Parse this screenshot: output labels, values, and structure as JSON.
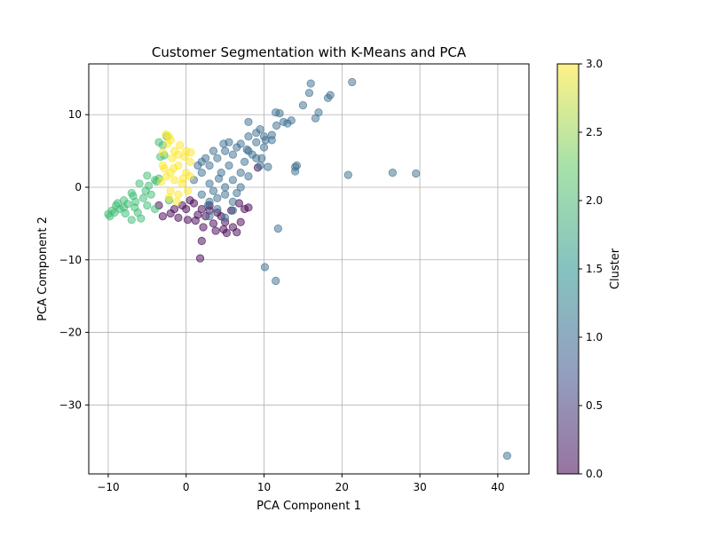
{
  "chart_data": {
    "type": "scatter",
    "title": "Customer Segmentation with K-Means and PCA",
    "xlabel": "PCA Component 1",
    "ylabel": "PCA Component 2",
    "xlim": [
      -12.5,
      44
    ],
    "ylim": [
      -39.5,
      17
    ],
    "xticks": [
      -10,
      0,
      10,
      20,
      30,
      40
    ],
    "yticks": [
      -30,
      -20,
      -10,
      0,
      10
    ],
    "xtick_labels": [
      "−10",
      "0",
      "10",
      "20",
      "30",
      "40"
    ],
    "ytick_labels": [
      "−30",
      "−20",
      "−10",
      "0",
      "10"
    ],
    "grid": true,
    "point_alpha": 0.5,
    "colorbar": {
      "label": "Cluster",
      "range": [
        0,
        3
      ],
      "ticks": [
        0.0,
        0.5,
        1.0,
        1.5,
        2.0,
        2.5,
        3.0
      ],
      "tick_labels": [
        "0.0",
        "0.5",
        "1.0",
        "1.5",
        "2.0",
        "2.5",
        "3.0"
      ],
      "colormap": "viridis",
      "stops": [
        "#440154",
        "#3b528b",
        "#21918c",
        "#5ec962",
        "#fde725"
      ]
    },
    "series": [
      {
        "cluster": 0,
        "color": "#440154",
        "points": [
          [
            1,
            -2.2
          ],
          [
            2,
            -3
          ],
          [
            3,
            -2.5
          ],
          [
            4,
            -3.5
          ],
          [
            5,
            -4.8
          ],
          [
            6,
            -5.5
          ],
          [
            2.5,
            -4
          ],
          [
            1.5,
            -3.8
          ],
          [
            3.5,
            -5
          ],
          [
            4.5,
            -4
          ],
          [
            -0.5,
            -2.5
          ],
          [
            -1,
            -4.2
          ],
          [
            -2,
            -3.6
          ],
          [
            -3,
            -4
          ],
          [
            -1.5,
            -3
          ],
          [
            0.5,
            -1.8
          ],
          [
            2.2,
            -5.5
          ],
          [
            3.8,
            -6
          ],
          [
            5.2,
            -6.3
          ],
          [
            6.5,
            -6.2
          ],
          [
            7.5,
            -3
          ],
          [
            8,
            -2.8
          ],
          [
            7,
            -4.8
          ],
          [
            2,
            -7.4
          ],
          [
            1.8,
            -9.8
          ],
          [
            9.2,
            2.7
          ],
          [
            -3.5,
            -2.5
          ],
          [
            0.2,
            -4.5
          ],
          [
            1.2,
            -4.6
          ],
          [
            4.8,
            -5.8
          ],
          [
            5.8,
            -3.2
          ],
          [
            6.8,
            -2.2
          ],
          [
            3,
            -3.2
          ],
          [
            0,
            -3
          ]
        ]
      },
      {
        "cluster": 1,
        "color": "#3b6e8f",
        "points": [
          [
            1,
            1
          ],
          [
            2,
            2
          ],
          [
            3,
            3
          ],
          [
            4,
            4
          ],
          [
            5,
            5
          ],
          [
            6,
            4.5
          ],
          [
            7,
            6
          ],
          [
            8,
            7
          ],
          [
            9,
            7.5
          ],
          [
            10,
            7
          ],
          [
            8,
            5
          ],
          [
            9,
            4
          ],
          [
            10,
            5.5
          ],
          [
            11,
            6.5
          ],
          [
            2,
            -1
          ],
          [
            3,
            -2
          ],
          [
            4,
            -1.5
          ],
          [
            5,
            0
          ],
          [
            6,
            1
          ],
          [
            7,
            2
          ],
          [
            5,
            -1
          ],
          [
            4,
            -3
          ],
          [
            3,
            -4
          ],
          [
            6,
            -2
          ],
          [
            2.5,
            4
          ],
          [
            3.5,
            5
          ],
          [
            6.5,
            5.5
          ],
          [
            1.5,
            3
          ],
          [
            7.5,
            3.5
          ],
          [
            8.5,
            4.5
          ],
          [
            10.5,
            2.8
          ],
          [
            9.5,
            3
          ],
          [
            9.5,
            8
          ],
          [
            8,
            9
          ],
          [
            11.5,
            10.3
          ],
          [
            12,
            10.2
          ],
          [
            12.5,
            9
          ],
          [
            13,
            8.8
          ],
          [
            13.5,
            9.2
          ],
          [
            11.6,
            8.5
          ],
          [
            9.7,
            4
          ],
          [
            15,
            11.3
          ],
          [
            15.8,
            13
          ],
          [
            16,
            14.3
          ],
          [
            16.6,
            9.5
          ],
          [
            17,
            10.3
          ],
          [
            18.2,
            12.3
          ],
          [
            18.5,
            12.7
          ],
          [
            21.3,
            14.5
          ],
          [
            14,
            2.2
          ],
          [
            14.2,
            3
          ],
          [
            14,
            2.8
          ],
          [
            20.8,
            1.7
          ],
          [
            26.5,
            2
          ],
          [
            29.5,
            1.9
          ],
          [
            11.8,
            -5.7
          ],
          [
            10.1,
            -11
          ],
          [
            11.5,
            -12.9
          ],
          [
            41.2,
            -37
          ],
          [
            4.5,
            2
          ],
          [
            5.5,
            3
          ],
          [
            3,
            0.5
          ],
          [
            2,
            3.5
          ],
          [
            6,
            -3.2
          ],
          [
            5,
            -4.2
          ],
          [
            7,
            0
          ],
          [
            6.5,
            -0.8
          ],
          [
            3.5,
            -0.5
          ],
          [
            4.2,
            1.2
          ],
          [
            2.8,
            -2.5
          ],
          [
            8,
            1.5
          ],
          [
            7.8,
            5.2
          ],
          [
            9,
            6.2
          ],
          [
            10.2,
            6.5
          ],
          [
            11,
            7.2
          ],
          [
            4.8,
            6
          ],
          [
            5.5,
            6.2
          ]
        ]
      },
      {
        "cluster": 2,
        "color": "#3ebc74",
        "points": [
          [
            -3,
            5.8
          ],
          [
            -3.5,
            6.2
          ],
          [
            -2.5,
            7
          ],
          [
            -2.8,
            4.4
          ],
          [
            -3.3,
            4.2
          ],
          [
            -4,
            1
          ],
          [
            -5,
            1.6
          ],
          [
            -6,
            0.5
          ],
          [
            -7,
            -0.8
          ],
          [
            -8,
            -1.8
          ],
          [
            -9,
            -2.5
          ],
          [
            -10,
            -3.7
          ],
          [
            -9.5,
            -3.2
          ],
          [
            -8.5,
            -3
          ],
          [
            -7.5,
            -2.3
          ],
          [
            -6.5,
            -2
          ],
          [
            -5.5,
            -1.5
          ],
          [
            -4.5,
            -1
          ],
          [
            -6.2,
            -3.5
          ],
          [
            -7,
            -4.5
          ],
          [
            -5.8,
            -4.3
          ],
          [
            -5,
            -2.5
          ],
          [
            -8,
            -2.8
          ],
          [
            -9.8,
            -4
          ],
          [
            -4.8,
            0.2
          ],
          [
            -3.8,
            0.8
          ],
          [
            -6.8,
            -1.2
          ],
          [
            -7.8,
            -3.6
          ],
          [
            -5.2,
            -0.5
          ],
          [
            -2.2,
            -1.8
          ],
          [
            -4,
            -3
          ],
          [
            -3.5,
            1.2
          ],
          [
            -8.8,
            -2.2
          ],
          [
            -9.2,
            -3.5
          ],
          [
            -6.6,
            -2.8
          ]
        ]
      },
      {
        "cluster": 3,
        "color": "#fde725",
        "points": [
          [
            -2.6,
            7.3
          ],
          [
            -2.2,
            7
          ],
          [
            -2,
            6.5
          ],
          [
            -1.5,
            5
          ],
          [
            -1,
            4.5
          ],
          [
            0,
            5
          ],
          [
            -1,
            3
          ],
          [
            -2,
            2
          ],
          [
            -1.5,
            1
          ],
          [
            -0.5,
            0.5
          ],
          [
            0,
            2
          ],
          [
            -1,
            -1
          ],
          [
            -2,
            -0.5
          ],
          [
            -2.5,
            1.5
          ],
          [
            -3,
            3
          ],
          [
            0.5,
            3.5
          ],
          [
            -0.2,
            4.2
          ],
          [
            -1.8,
            4
          ],
          [
            -2.8,
            2.6
          ],
          [
            -3.2,
            0.8
          ],
          [
            -1.2,
            -2
          ],
          [
            0.2,
            -0.5
          ],
          [
            0.5,
            1.5
          ],
          [
            -0.8,
            5.8
          ],
          [
            0.6,
            4.8
          ],
          [
            -2.4,
            6
          ],
          [
            -3,
            4.8
          ],
          [
            -1.6,
            2.6
          ],
          [
            -0.4,
            1.2
          ],
          [
            -2.2,
            -1.4
          ]
        ]
      }
    ]
  }
}
